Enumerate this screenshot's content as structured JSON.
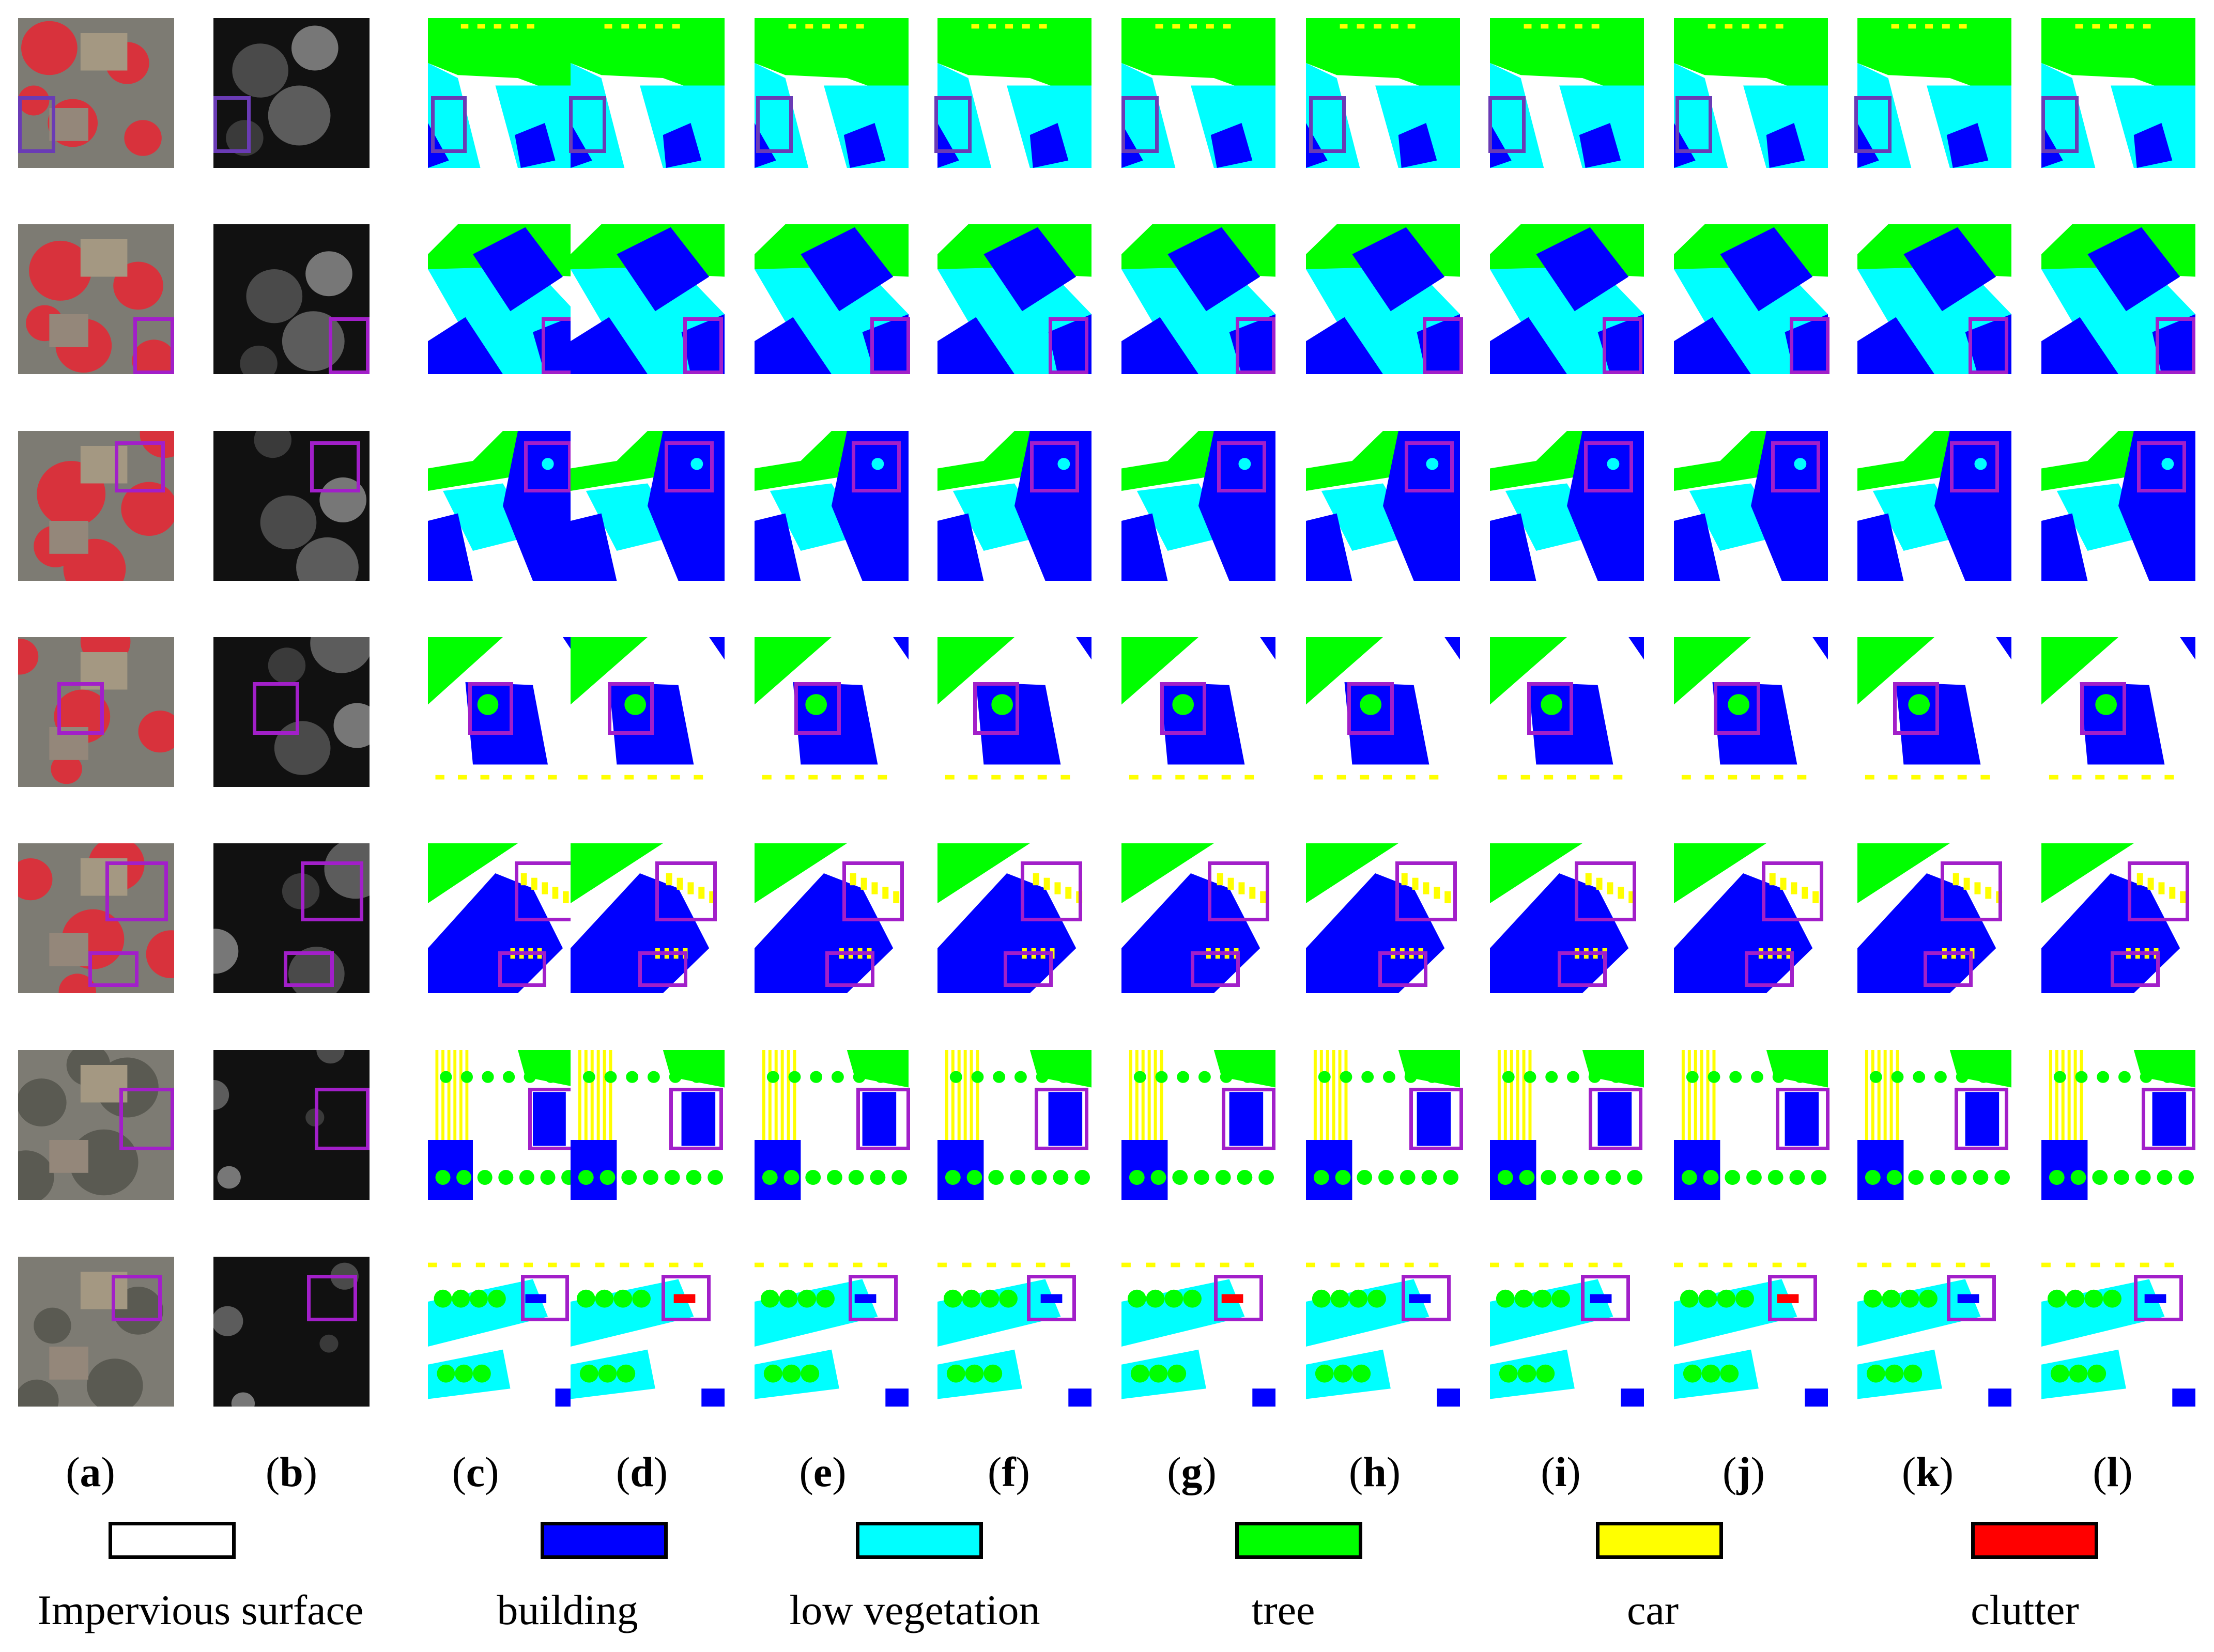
{
  "figure": {
    "column_labels": [
      "a",
      "b",
      "c",
      "d",
      "e",
      "f",
      "g",
      "h",
      "i",
      "j",
      "k",
      "l"
    ],
    "legend": [
      {
        "label": "Impervious surface",
        "color": "#ffffff"
      },
      {
        "label": "building",
        "color": "#0000ff"
      },
      {
        "label": "low vegetation",
        "color": "#00ffff"
      },
      {
        "label": "tree",
        "color": "#00ff00"
      },
      {
        "label": "car",
        "color": "#ffff00"
      },
      {
        "label": "clutter",
        "color": "#ff0000"
      }
    ],
    "colors": {
      "impervious": "#ffffff",
      "building": "#0000ff",
      "lowveg": "#00ffff",
      "tree": "#00ff00",
      "car": "#ffff00",
      "clutter": "#ff0000",
      "highlight": "#a21fc9",
      "highlight_row1": "#6a3bb5"
    },
    "rows": 7,
    "input_columns": [
      "a",
      "b"
    ],
    "prediction_columns": [
      "c",
      "d",
      "e",
      "f",
      "g",
      "h",
      "i",
      "j",
      "k",
      "l"
    ]
  }
}
